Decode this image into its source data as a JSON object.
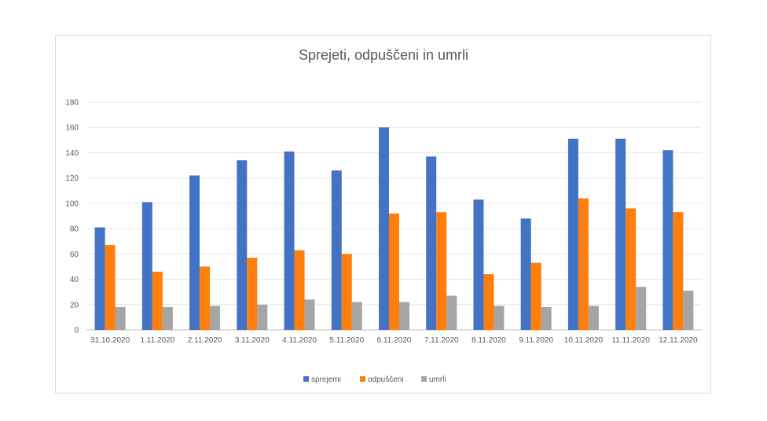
{
  "chart_data": {
    "type": "bar",
    "title": "Sprejeti, odpuščeni in umrli",
    "xlabel": "",
    "ylabel": "",
    "ylim": [
      0,
      180
    ],
    "yticks": [
      0,
      20,
      40,
      60,
      80,
      100,
      120,
      140,
      160,
      180
    ],
    "grid": true,
    "legend_position": "bottom",
    "categories": [
      "31.10.2020",
      "1.11.2020",
      "2.11.2020",
      "3.11.2020",
      "4.11.2020",
      "5.11.2020",
      "6.11.2020",
      "7.11.2020",
      "8.11.2020",
      "9.11.2020",
      "10.11.2020",
      "11.11.2020",
      "12.11.2020"
    ],
    "series": [
      {
        "name": "sprejemi",
        "color": "#4472C4",
        "values": [
          81,
          101,
          122,
          134,
          141,
          126,
          160,
          137,
          103,
          88,
          151,
          151,
          142
        ]
      },
      {
        "name": "odpuščeni",
        "color": "#FF7F0E",
        "values": [
          67,
          46,
          50,
          57,
          63,
          60,
          92,
          93,
          44,
          53,
          104,
          96,
          93
        ]
      },
      {
        "name": "umrli",
        "color": "#A5A5A5",
        "values": [
          18,
          18,
          19,
          20,
          24,
          22,
          22,
          27,
          19,
          18,
          19,
          34,
          31
        ]
      }
    ]
  }
}
